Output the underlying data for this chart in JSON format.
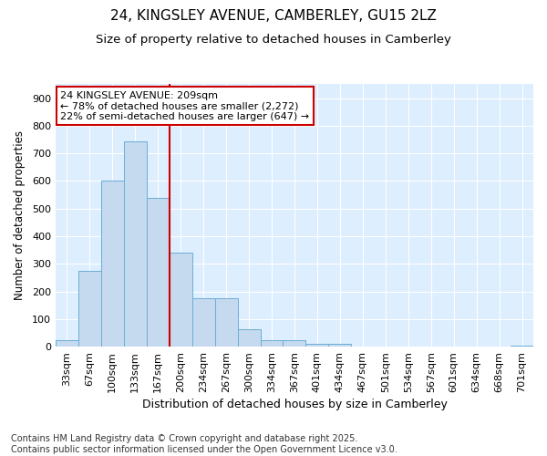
{
  "title1": "24, KINGSLEY AVENUE, CAMBERLEY, GU15 2LZ",
  "title2": "Size of property relative to detached houses in Camberley",
  "xlabel": "Distribution of detached houses by size in Camberley",
  "ylabel": "Number of detached properties",
  "categories": [
    "33sqm",
    "67sqm",
    "100sqm",
    "133sqm",
    "167sqm",
    "200sqm",
    "234sqm",
    "267sqm",
    "300sqm",
    "334sqm",
    "367sqm",
    "401sqm",
    "434sqm",
    "467sqm",
    "501sqm",
    "534sqm",
    "567sqm",
    "601sqm",
    "634sqm",
    "668sqm",
    "701sqm"
  ],
  "values": [
    25,
    275,
    600,
    745,
    540,
    340,
    175,
    175,
    65,
    25,
    25,
    10,
    10,
    0,
    0,
    0,
    0,
    0,
    0,
    0,
    5
  ],
  "bar_color": "#c5d9ef",
  "bar_edge_color": "#6baed6",
  "plot_bg_color": "#ddeeff",
  "fig_bg_color": "#ffffff",
  "grid_color": "#ffffff",
  "vline_color": "#cc0000",
  "vline_pos": 5,
  "annotation_text": "24 KINGSLEY AVENUE: 209sqm\n← 78% of detached houses are smaller (2,272)\n22% of semi-detached houses are larger (647) →",
  "annotation_box_edgecolor": "#cc0000",
  "ylim": [
    0,
    950
  ],
  "yticks": [
    0,
    100,
    200,
    300,
    400,
    500,
    600,
    700,
    800,
    900
  ],
  "footnote": "Contains HM Land Registry data © Crown copyright and database right 2025.\nContains public sector information licensed under the Open Government Licence v3.0.",
  "title1_fontsize": 11,
  "title2_fontsize": 9.5,
  "xlabel_fontsize": 9,
  "ylabel_fontsize": 8.5,
  "tick_fontsize": 8,
  "annot_fontsize": 8,
  "footnote_fontsize": 7
}
